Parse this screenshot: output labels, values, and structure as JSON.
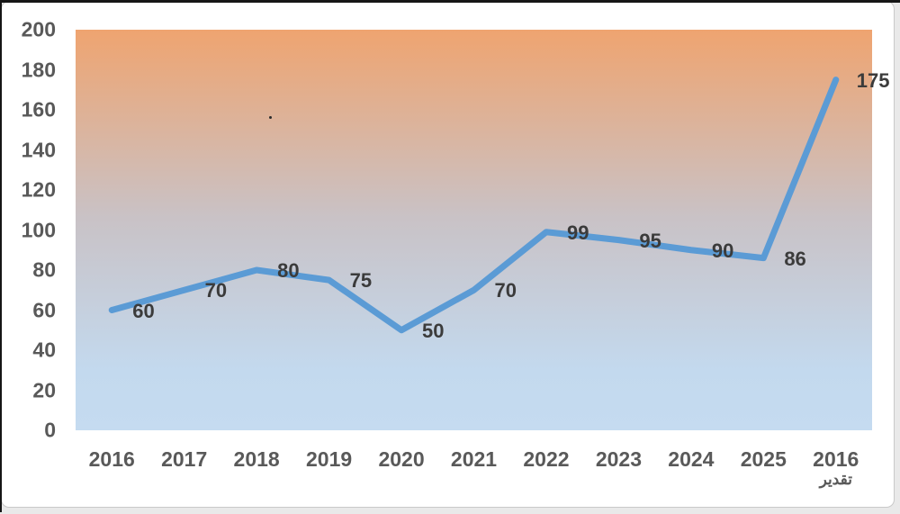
{
  "chart_data": {
    "type": "line",
    "categories": [
      "2016",
      "2017",
      "2018",
      "2019",
      "2020",
      "2021",
      "2022",
      "2023",
      "2024",
      "2025",
      "2016"
    ],
    "last_category_sublabel": "تقدير",
    "values": [
      60,
      70,
      80,
      75,
      50,
      70,
      99,
      95,
      90,
      86,
      175
    ],
    "data_labels": [
      "60",
      "70",
      "80",
      "75",
      "50",
      "70",
      "99",
      "95",
      "90",
      "86",
      "175"
    ],
    "yticks": [
      0,
      20,
      40,
      60,
      80,
      100,
      120,
      140,
      160,
      180,
      200
    ],
    "ylim": [
      0,
      200
    ],
    "title": "",
    "xlabel": "",
    "ylabel": "",
    "grid": false,
    "legend": null,
    "line_color": "#5b9bd5",
    "axis_text_color": "#595959",
    "data_label_color": "#3b3b3b",
    "plot_gradient_top": "#efa470",
    "plot_gradient_mid": "#c9c2c6",
    "plot_gradient_bottom": "#c5dbf0"
  }
}
